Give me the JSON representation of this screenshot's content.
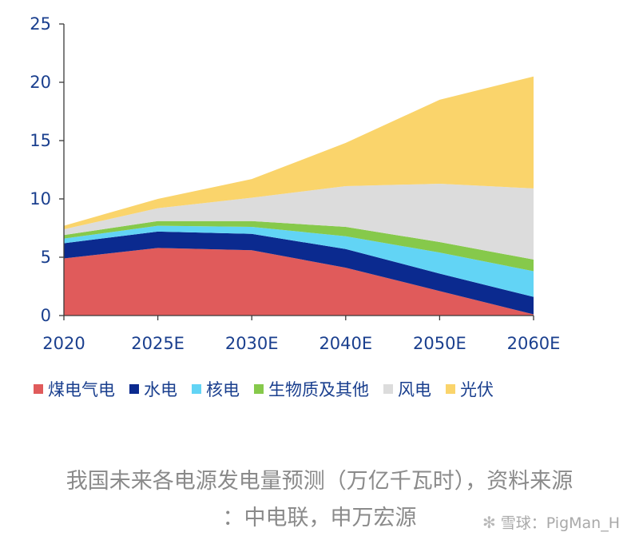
{
  "chart_data": {
    "type": "area",
    "stacked": true,
    "categories": [
      "2020",
      "2025E",
      "2030E",
      "2040E",
      "2050E",
      "2060E"
    ],
    "ylim": [
      0,
      25
    ],
    "yticks": [
      0,
      5,
      10,
      15,
      20,
      25
    ],
    "series": [
      {
        "name": "煤电气电",
        "color": "#e05b5b",
        "values": [
          4.9,
          5.8,
          5.6,
          4.1,
          2.1,
          0.1
        ]
      },
      {
        "name": "水电",
        "color": "#0b2a8f",
        "values": [
          1.3,
          1.4,
          1.4,
          1.6,
          1.5,
          1.5
        ]
      },
      {
        "name": "核电",
        "color": "#62d4f5",
        "values": [
          0.4,
          0.5,
          0.6,
          1.1,
          1.8,
          2.2
        ]
      },
      {
        "name": "生物质及其他",
        "color": "#86c94b",
        "values": [
          0.3,
          0.4,
          0.5,
          0.8,
          0.9,
          1.0
        ]
      },
      {
        "name": "风电",
        "color": "#dcdcdc",
        "values": [
          0.5,
          1.1,
          2.0,
          3.5,
          5.0,
          6.1
        ]
      },
      {
        "name": "光伏",
        "color": "#fad46b",
        "values": [
          0.3,
          0.8,
          1.6,
          3.7,
          7.2,
          9.6
        ]
      }
    ],
    "title": "",
    "xlabel": "",
    "ylabel": "",
    "legend_position": "bottom"
  },
  "caption": {
    "line1": "我国未来各电源发电量预测（万亿千瓦时），资料来源",
    "line2": "：中电联，申万宏源"
  },
  "watermark": {
    "icon": "snowball-icon",
    "text": "雪球：PigMan_H"
  }
}
